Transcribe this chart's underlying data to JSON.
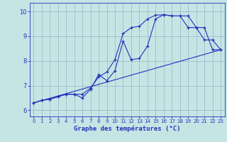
{
  "xlabel": "Graphe des températures (°C)",
  "bg_color": "#c5e5e5",
  "grid_color": "#9ab0c8",
  "line_color": "#2233bb",
  "xlim": [
    -0.5,
    23.5
  ],
  "ylim": [
    5.75,
    10.35
  ],
  "xticks": [
    0,
    1,
    2,
    3,
    4,
    5,
    6,
    7,
    8,
    9,
    10,
    11,
    12,
    13,
    14,
    15,
    16,
    17,
    18,
    19,
    20,
    21,
    22,
    23
  ],
  "yticks": [
    6,
    7,
    8,
    9,
    10
  ],
  "line1_x": [
    0,
    1,
    2,
    3,
    4,
    5,
    6,
    7,
    8,
    9,
    10,
    11,
    12,
    13,
    14,
    15,
    16,
    17,
    18,
    19,
    20,
    21,
    22,
    23
  ],
  "line1_y": [
    6.3,
    6.4,
    6.45,
    6.55,
    6.65,
    6.65,
    6.5,
    6.85,
    7.45,
    7.2,
    7.6,
    8.8,
    8.05,
    8.1,
    8.6,
    9.7,
    9.87,
    9.82,
    9.82,
    9.82,
    9.35,
    8.85,
    8.85,
    8.45
  ],
  "line2_x": [
    0,
    1,
    2,
    3,
    4,
    5,
    6,
    7,
    8,
    9,
    10,
    11,
    12,
    13,
    14,
    15,
    16,
    17,
    18,
    19,
    20,
    21,
    22,
    23
  ],
  "line2_y": [
    6.3,
    6.4,
    6.45,
    6.55,
    6.65,
    6.65,
    6.65,
    6.9,
    7.35,
    7.55,
    8.05,
    9.1,
    9.35,
    9.4,
    9.7,
    9.85,
    9.87,
    9.82,
    9.82,
    9.35,
    9.35,
    9.35,
    8.45,
    8.45
  ],
  "line3_x": [
    0,
    23
  ],
  "line3_y": [
    6.3,
    8.45
  ]
}
